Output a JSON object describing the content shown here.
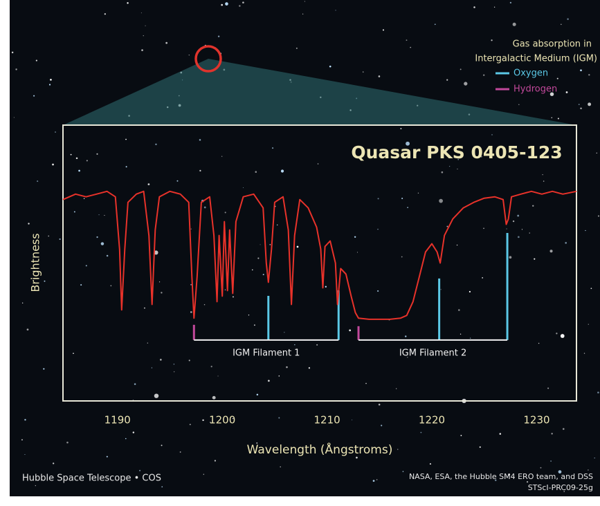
{
  "chart_data": {
    "type": "line",
    "title": "Quasar PKS 0405-123",
    "xlabel": "Wavelength (Ångstroms)",
    "ylabel": "Brightness",
    "xlim": [
      1184.8,
      1233.8
    ],
    "ylim": [
      0,
      1
    ],
    "xticks": [
      1190,
      1200,
      1210,
      1220,
      1230
    ],
    "legend_title": [
      "Gas absorption in",
      "Intergalactic Medium (IGM)"
    ],
    "spectrum": {
      "color": "#e8322a",
      "x": [
        1184.8,
        1186,
        1187,
        1188,
        1189,
        1189.8,
        1190.2,
        1190.4,
        1190.7,
        1191.0,
        1191.8,
        1192.5,
        1193.0,
        1193.3,
        1193.6,
        1194.0,
        1195,
        1196,
        1196.8,
        1197.1,
        1197.3,
        1197.6,
        1198.0,
        1198.8,
        1199.2,
        1199.5,
        1199.7,
        1200.0,
        1200.2,
        1200.5,
        1200.7,
        1201.0,
        1201.3,
        1202,
        1203,
        1203.9,
        1204.2,
        1204.4,
        1204.7,
        1205.0,
        1205.8,
        1206.3,
        1206.6,
        1206.9,
        1207.4,
        1208.2,
        1209.0,
        1209.4,
        1209.6,
        1209.8,
        1210.3,
        1210.8,
        1211.0,
        1211.3,
        1211.8,
        1212.3,
        1212.7,
        1213.0,
        1214,
        1215,
        1216,
        1217,
        1217.6,
        1218.2,
        1218.8,
        1219.4,
        1220.0,
        1220.5,
        1220.8,
        1221.2,
        1222,
        1223,
        1224,
        1225,
        1226,
        1226.8,
        1227.1,
        1227.3,
        1227.6,
        1228.5,
        1229.5,
        1230.5,
        1231.5,
        1232.5,
        1233.8
      ],
      "values": [
        0.73,
        0.75,
        0.74,
        0.75,
        0.76,
        0.74,
        0.55,
        0.33,
        0.55,
        0.72,
        0.75,
        0.76,
        0.6,
        0.35,
        0.62,
        0.74,
        0.76,
        0.75,
        0.72,
        0.45,
        0.3,
        0.45,
        0.72,
        0.74,
        0.6,
        0.36,
        0.6,
        0.38,
        0.65,
        0.4,
        0.62,
        0.39,
        0.65,
        0.74,
        0.75,
        0.7,
        0.5,
        0.43,
        0.55,
        0.72,
        0.74,
        0.62,
        0.35,
        0.6,
        0.73,
        0.7,
        0.63,
        0.55,
        0.41,
        0.56,
        0.58,
        0.5,
        0.35,
        0.48,
        0.46,
        0.38,
        0.32,
        0.3,
        0.296,
        0.296,
        0.296,
        0.3,
        0.31,
        0.36,
        0.45,
        0.54,
        0.57,
        0.54,
        0.5,
        0.6,
        0.66,
        0.7,
        0.72,
        0.735,
        0.74,
        0.73,
        0.64,
        0.66,
        0.74,
        0.75,
        0.76,
        0.75,
        0.76,
        0.75,
        0.76
      ]
    },
    "absorption": [
      {
        "name": "Oxygen",
        "color": "#5bc8e6",
        "x": [
          1204.4,
          1211.1,
          1220.7,
          1227.2
        ],
        "top": [
          0.381,
          0.401,
          0.444,
          0.609
        ],
        "base": 0.221
      },
      {
        "name": "Hydrogen",
        "color": "#c2489b",
        "x": [
          1197.3,
          1213.0
        ],
        "top": [
          0.276,
          0.271
        ],
        "base": 0.221
      }
    ],
    "filaments": [
      {
        "label": "IGM Filament 1",
        "range": [
          1197.3,
          1211.1
        ]
      },
      {
        "label": "IGM Filament 2",
        "range": [
          1213.0,
          1227.2
        ]
      }
    ],
    "credit_left": "Hubble Space Telescope • COS",
    "credit_right": [
      "NASA, ESA, the Hubble SM4 ERO team, and DSS",
      "STScI-PRC09-25g"
    ]
  }
}
